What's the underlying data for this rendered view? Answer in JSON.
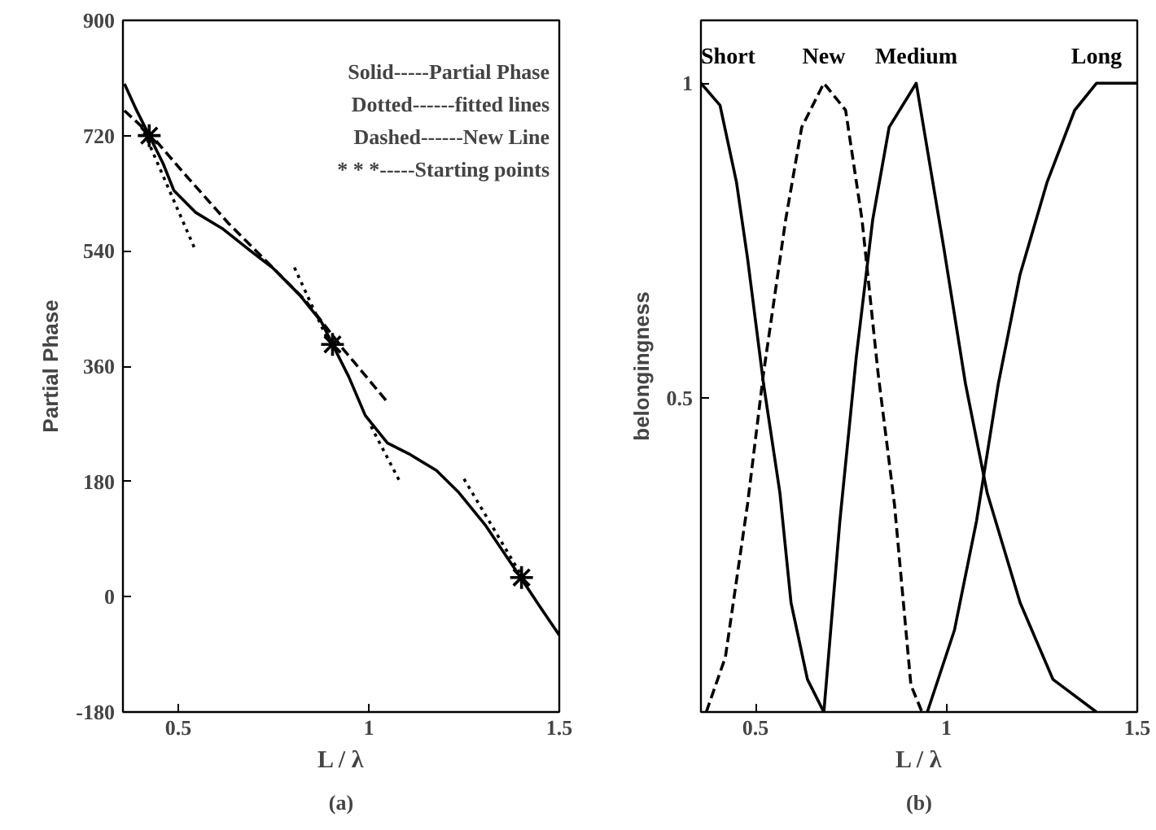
{
  "chart_data": [
    {
      "type": "line",
      "title": "(a)",
      "xlabel": "L / λ",
      "ylabel": "Partial Phase",
      "xlim": [
        0.355,
        1.5
      ],
      "ylim": [
        -180,
        900
      ],
      "xticks": [
        0.5,
        1,
        1.5
      ],
      "yticks": [
        -180,
        0,
        180,
        360,
        540,
        720,
        900
      ],
      "grid": false,
      "annotations": [
        "Solid-----Partial Phase",
        "Dotted------fitted lines",
        "Dashed------New Line",
        "* * *-----Starting points"
      ],
      "series": [
        {
          "color": "#000000",
          "line_style": "solid",
          "x": [
            0.359,
            0.388,
            0.424,
            0.46,
            0.489,
            0.546,
            0.618,
            0.69,
            0.747,
            0.819,
            0.876,
            0.905,
            0.948,
            0.991,
            1.049,
            1.106,
            1.178,
            1.236,
            1.307,
            1.394,
            1.451,
            1.5
          ],
          "values": [
            801,
            763,
            720,
            677,
            634,
            600,
            574,
            540,
            514,
            471,
            429,
            394,
            343,
            283,
            240,
            223,
            197,
            163,
            111,
            34,
            -17,
            -60
          ]
        },
        {
          "color": "#000000",
          "line_style": "dashed",
          "x": [
            0.359,
            0.43,
            0.517,
            0.632,
            0.733,
            0.833,
            0.934,
            1.049
          ],
          "values": [
            759,
            720,
            660,
            583,
            523,
            463,
            386,
            304
          ]
        },
        {
          "color": "#000000",
          "line_style": "dotted",
          "x": [
            0.402,
            0.546
          ],
          "values": [
            737,
            540
          ]
        },
        {
          "color": "#000000",
          "line_style": "dotted",
          "x": [
            0.805,
            0.891
          ],
          "values": [
            514,
            403
          ]
        },
        {
          "color": "#000000",
          "line_style": "dotted",
          "x": [
            1.006,
            1.085
          ],
          "values": [
            266,
            176
          ]
        },
        {
          "color": "#000000",
          "line_style": "dotted",
          "x": [
            1.25,
            1.408
          ],
          "values": [
            184,
            26
          ]
        },
        {
          "type": "scatter",
          "marker": "cross",
          "color": "#000000",
          "x": [
            0.424,
            0.905,
            1.401
          ],
          "values": [
            720,
            394,
            30
          ]
        }
      ]
    },
    {
      "type": "line",
      "title": "(b)",
      "xlabel": "L / λ",
      "ylabel": "belongingness",
      "xlim": [
        0.357,
        1.5
      ],
      "ylim": [
        0,
        1.1
      ],
      "xticks": [
        0.5,
        1,
        1.5
      ],
      "yticks": [
        0.5,
        1
      ],
      "grid": false,
      "series": [
        {
          "name": "Short",
          "color": "#000000",
          "line_style": "solid",
          "x": [
            0.357,
            0.407,
            0.45,
            0.479,
            0.521,
            0.564,
            0.593,
            0.636,
            0.679
          ],
          "values": [
            1,
            0.965,
            0.843,
            0.722,
            0.522,
            0.348,
            0.174,
            0.052,
            0
          ]
        },
        {
          "name": "New",
          "color": "#000000",
          "line_style": "dashed",
          "x": [
            0.371,
            0.421,
            0.479,
            0.521,
            0.579,
            0.621,
            0.679,
            0.736,
            0.779,
            0.821,
            0.864,
            0.907,
            0.936
          ],
          "values": [
            0,
            0.087,
            0.33,
            0.539,
            0.783,
            0.93,
            1,
            0.957,
            0.783,
            0.539,
            0.33,
            0.043,
            0
          ]
        },
        {
          "name": "Medium",
          "color": "#000000",
          "line_style": "solid",
          "x": [
            0.679,
            0.721,
            0.764,
            0.807,
            0.85,
            0.921,
            0.993,
            1.05,
            1.107,
            1.193,
            1.279,
            1.393
          ],
          "values": [
            0,
            0.304,
            0.565,
            0.783,
            0.93,
            1,
            0.739,
            0.522,
            0.348,
            0.174,
            0.052,
            0
          ]
        },
        {
          "name": "Long",
          "color": "#000000",
          "line_style": "solid",
          "x": [
            0.95,
            1.021,
            1.079,
            1.136,
            1.193,
            1.264,
            1.336,
            1.393,
            1.5
          ],
          "values": [
            0,
            0.13,
            0.304,
            0.522,
            0.696,
            0.843,
            0.957,
            1,
            1
          ]
        }
      ]
    }
  ]
}
